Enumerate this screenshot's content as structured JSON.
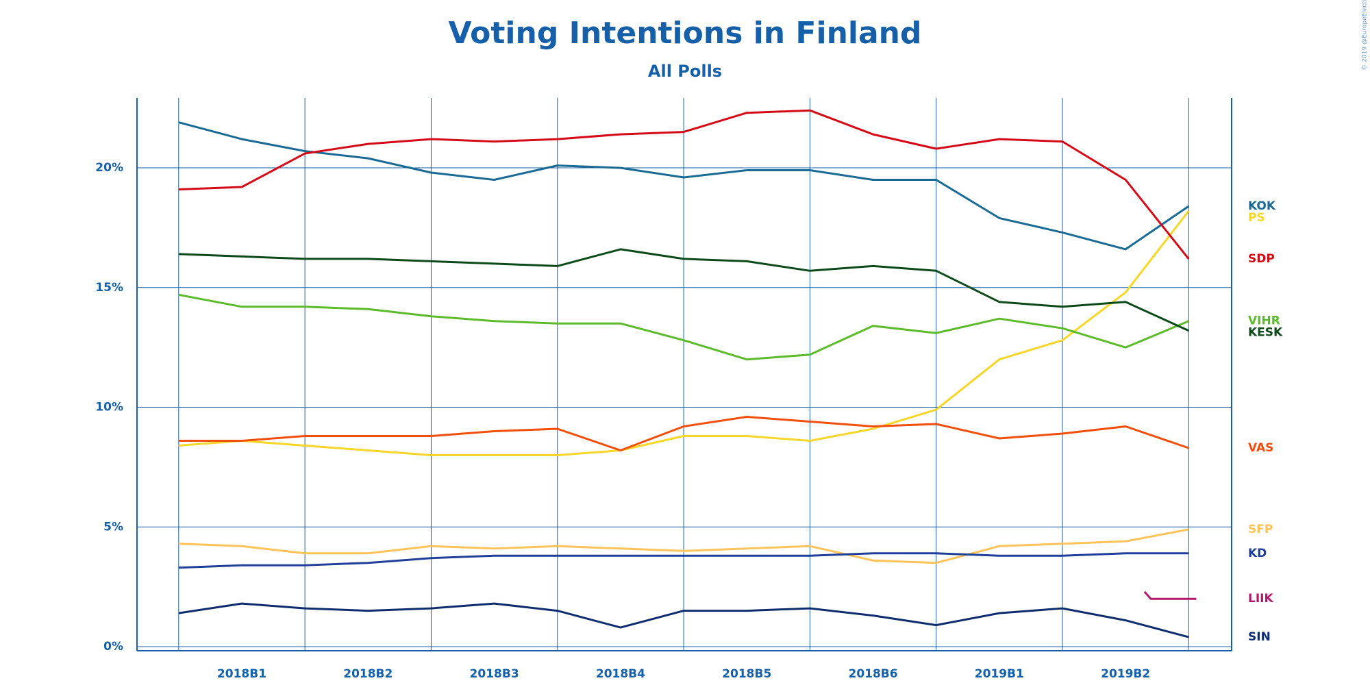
{
  "chart_data": {
    "type": "line",
    "title": "Voting Intentions in Finland",
    "subtitle": "All Polls",
    "credit": "© 2019 @EuropeElects",
    "x": [
      0,
      0.5,
      1,
      1.5,
      2,
      2.5,
      3,
      3.5,
      4,
      4.5,
      5,
      5.5,
      6,
      6.5,
      7,
      7.5,
      8
    ],
    "xlim": [
      -0.33,
      8.34
    ],
    "xticks": [
      {
        "value": 0.5,
        "label": "2018B1"
      },
      {
        "value": 1.5,
        "label": "2018B2"
      },
      {
        "value": 2.5,
        "label": "2018B3"
      },
      {
        "value": 3.5,
        "label": "2018B4"
      },
      {
        "value": 4.5,
        "label": "2018B5"
      },
      {
        "value": 5.5,
        "label": "2018B6"
      },
      {
        "value": 6.5,
        "label": "2019B1"
      },
      {
        "value": 7.5,
        "label": "2019B2"
      }
    ],
    "xgrid": [
      0,
      1,
      2,
      3,
      4,
      5,
      6,
      7,
      8
    ],
    "ylim": [
      -0.17,
      22.92
    ],
    "yticks": [
      {
        "value": 0,
        "label": "0%"
      },
      {
        "value": 5,
        "label": "5%"
      },
      {
        "value": 10,
        "label": "10%"
      },
      {
        "value": 15,
        "label": "15%"
      },
      {
        "value": 20,
        "label": "20%"
      }
    ],
    "grid": true,
    "series": [
      {
        "name": "KOK",
        "color": "#1a6a96",
        "values": [
          21.9,
          21.2,
          20.7,
          20.4,
          19.8,
          19.5,
          20.1,
          20.0,
          19.6,
          19.9,
          19.9,
          19.5,
          19.5,
          17.9,
          17.3,
          16.6,
          18.4
        ]
      },
      {
        "name": "PS",
        "color": "#f5d629",
        "values": [
          8.4,
          8.6,
          8.4,
          8.2,
          8.0,
          8.0,
          8.0,
          8.2,
          8.8,
          8.8,
          8.6,
          9.1,
          9.9,
          12.0,
          12.8,
          14.8,
          18.2
        ]
      },
      {
        "name": "SDP",
        "color": "#d40a16",
        "values": [
          19.1,
          19.2,
          20.6,
          21.0,
          21.2,
          21.1,
          21.2,
          21.4,
          21.5,
          22.3,
          22.4,
          21.4,
          20.8,
          21.2,
          21.1,
          19.5,
          16.2
        ]
      },
      {
        "name": "VIHR",
        "color": "#5cbb2a",
        "values": [
          14.7,
          14.2,
          14.2,
          14.1,
          13.8,
          13.6,
          13.5,
          13.5,
          12.8,
          12.0,
          12.2,
          13.4,
          13.1,
          13.7,
          13.3,
          12.5,
          13.6
        ]
      },
      {
        "name": "KESK",
        "color": "#0c4a1a",
        "values": [
          16.4,
          16.3,
          16.2,
          16.2,
          16.1,
          16.0,
          15.9,
          16.6,
          16.2,
          16.1,
          15.7,
          15.9,
          15.7,
          14.4,
          14.2,
          14.4,
          13.2
        ]
      },
      {
        "name": "VAS",
        "color": "#f24e0c",
        "values": [
          8.6,
          8.6,
          8.8,
          8.8,
          8.8,
          9.0,
          9.1,
          8.2,
          9.2,
          9.6,
          9.4,
          9.2,
          9.3,
          8.7,
          8.9,
          9.2,
          8.3
        ]
      },
      {
        "name": "SFP",
        "color": "#ffc35a",
        "values": [
          4.3,
          4.2,
          3.9,
          3.9,
          4.2,
          4.1,
          4.2,
          4.1,
          4.0,
          4.1,
          4.2,
          3.6,
          3.5,
          4.2,
          4.3,
          4.4,
          4.9
        ]
      },
      {
        "name": "KD",
        "color": "#1f3f9a",
        "values": [
          3.3,
          3.4,
          3.4,
          3.5,
          3.7,
          3.8,
          3.8,
          3.8,
          3.8,
          3.8,
          3.8,
          3.9,
          3.9,
          3.8,
          3.8,
          3.9,
          3.9
        ]
      },
      {
        "name": "LIIK",
        "color": "#b0186a",
        "x": [
          7.65,
          7.7,
          8.06
        ],
        "values": [
          2.3,
          2.0,
          2.0
        ]
      },
      {
        "name": "SIN",
        "color": "#0e2d6e",
        "values": [
          1.4,
          1.8,
          1.6,
          1.5,
          1.6,
          1.8,
          1.5,
          0.8,
          1.5,
          1.5,
          1.6,
          1.3,
          0.9,
          1.4,
          1.6,
          1.1,
          0.4
        ]
      }
    ]
  }
}
